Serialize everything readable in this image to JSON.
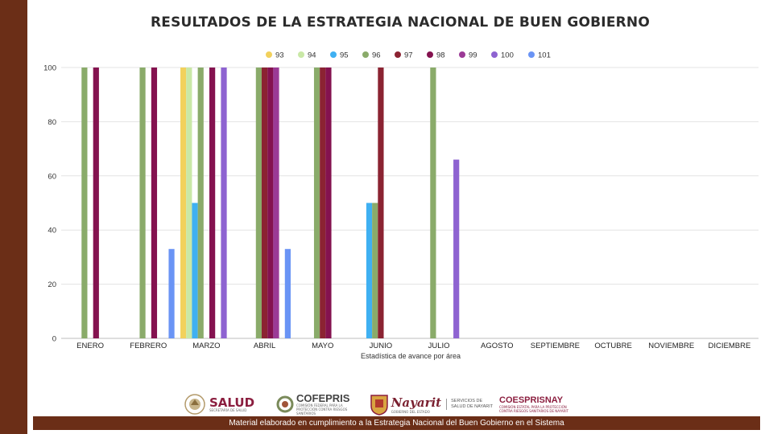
{
  "title": "RESULTADOS DE LA ESTRATEGIA NACIONAL DE BUEN GOBIERNO",
  "chart_data": {
    "type": "bar",
    "title": "RESULTADOS DE LA ESTRATEGIA NACIONAL DE BUEN GOBIERNO",
    "xlabel": "Estadística de avance por área",
    "ylabel": "",
    "ylim": [
      0,
      100
    ],
    "yticks": [
      0,
      20,
      40,
      60,
      80,
      100
    ],
    "grid": true,
    "legend_position": "top",
    "categories": [
      "ENERO",
      "FEBRERO",
      "MARZO",
      "ABRIL",
      "MAYO",
      "JUNIO",
      "JULIO",
      "AGOSTO",
      "SEPTIEMBRE",
      "OCTUBRE",
      "NOVIEMBRE",
      "DICIEMBRE"
    ],
    "series": [
      {
        "name": "93",
        "color": "#f2d15c",
        "values": [
          0,
          0,
          100,
          0,
          0,
          0,
          0,
          0,
          0,
          0,
          0,
          0
        ]
      },
      {
        "name": "94",
        "color": "#c9e8a6",
        "values": [
          0,
          0,
          100,
          0,
          0,
          0,
          0,
          0,
          0,
          0,
          0,
          0
        ]
      },
      {
        "name": "95",
        "color": "#3fb0f2",
        "values": [
          0,
          0,
          50,
          0,
          0,
          50,
          0,
          0,
          0,
          0,
          0,
          0
        ]
      },
      {
        "name": "96",
        "color": "#8aab6a",
        "values": [
          100,
          100,
          100,
          100,
          100,
          50,
          100,
          0,
          0,
          0,
          0,
          0
        ]
      },
      {
        "name": "97",
        "color": "#8b2332",
        "values": [
          0,
          0,
          0,
          100,
          100,
          100,
          0,
          0,
          0,
          0,
          0,
          0
        ]
      },
      {
        "name": "98",
        "color": "#84124f",
        "values": [
          100,
          100,
          100,
          100,
          100,
          0,
          0,
          0,
          0,
          0,
          0,
          0
        ]
      },
      {
        "name": "99",
        "color": "#9b3a96",
        "values": [
          0,
          0,
          0,
          100,
          0,
          0,
          0,
          0,
          0,
          0,
          0,
          0
        ]
      },
      {
        "name": "100",
        "color": "#8e63d1",
        "values": [
          0,
          0,
          100,
          0,
          0,
          0,
          66,
          0,
          0,
          0,
          0,
          0
        ]
      },
      {
        "name": "101",
        "color": "#6a94f5",
        "values": [
          0,
          33,
          0,
          33,
          0,
          0,
          0,
          0,
          0,
          0,
          0,
          0
        ]
      }
    ]
  },
  "logos": {
    "salud": {
      "name": "SALUD",
      "sub": "SECRETARÍA DE SALUD"
    },
    "cofepris": {
      "name": "COFEPRIS",
      "sub": "COMISIÓN FEDERAL PARA LA PROTECCIÓN CONTRA RIESGOS SANITARIOS"
    },
    "nayarit": {
      "name": "Nayarit",
      "sub": "GOBIERNO DEL ESTADO",
      "services": "SERVICIOS DE SALUD DE NAYARIT"
    },
    "coesprisnay": {
      "name": "COESPRISNAY",
      "sub": "COMISIÓN ESTATAL PARA LA PROTECCIÓN CONTRA RIESGOS SANITARIOS DE NAYARIT"
    }
  },
  "footer": "Material elaborado en cumplimiento a la Estrategia Nacional  del Buen Gobierno en el Sistema"
}
